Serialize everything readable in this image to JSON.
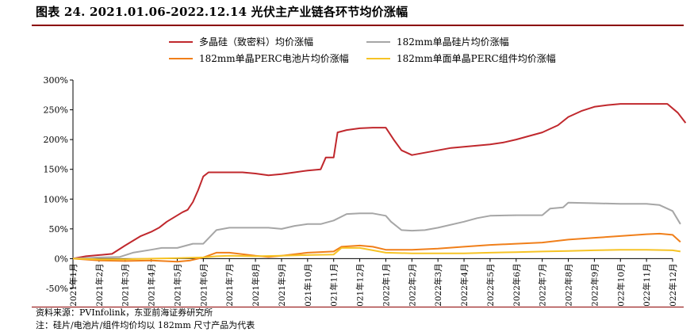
{
  "header": {
    "title": "图表 24. 2021.01.06-2022.12.14 光伏主产业链各环节均价涨幅"
  },
  "footer": {
    "source": "资料来源：PVInfolink，东亚前海证券研究所",
    "note": "注：硅片/电池片/组件均价均以 182mm 尺寸产品为代表"
  },
  "chart_data": {
    "type": "line",
    "title": "",
    "xlabel": "",
    "ylabel": "",
    "ylim": [
      -50,
      300
    ],
    "y_ticks": [
      "300%",
      "250%",
      "200%",
      "150%",
      "100%",
      "50%",
      "0%",
      "-50%"
    ],
    "y_tick_values": [
      300,
      250,
      200,
      150,
      100,
      50,
      0,
      -50
    ],
    "x_tick_labels": [
      "2021年1月",
      "2021年2月",
      "2021年3月",
      "2021年4月",
      "2021年5月",
      "2021年6月",
      "2021年7月",
      "2021年8月",
      "2021年9月",
      "2021年10月",
      "2021年11月",
      "2021年12月",
      "2022年1月",
      "2022年2月",
      "2022年3月",
      "2022年4月",
      "2022年5月",
      "2022年6月",
      "2022年7月",
      "2022年8月",
      "2022年9月",
      "2022年10月",
      "2022年11月",
      "2022年12月"
    ],
    "x_unit": "month index (0 = 2021年1月)",
    "grid": false,
    "legend_position": "top",
    "series": [
      {
        "name": "多晶硅（致密料）均价涨幅",
        "color": "#c0282d",
        "x": [
          0,
          0.5,
          1,
          1.5,
          2,
          2.3,
          2.6,
          3,
          3.3,
          3.6,
          3.9,
          4.2,
          4.4,
          4.6,
          4.8,
          5.0,
          5.2,
          5.4,
          5.6,
          6,
          6.5,
          7,
          7.5,
          8,
          8.5,
          9,
          9.5,
          9.7,
          9.8,
          10.0,
          10.15,
          10.5,
          11,
          11.5,
          12,
          12.3,
          12.6,
          13,
          13.5,
          14,
          14.5,
          15,
          15.5,
          16,
          16.5,
          17,
          17.5,
          18,
          18.3,
          18.6,
          19,
          19.5,
          20,
          20.5,
          21,
          21.5,
          22,
          22.5,
          22.8,
          23.2,
          23.5
        ],
        "values": [
          0,
          4,
          6,
          8,
          22,
          30,
          38,
          45,
          52,
          62,
          70,
          78,
          82,
          95,
          115,
          138,
          145,
          145,
          145,
          145,
          145,
          143,
          140,
          142,
          145,
          148,
          150,
          170,
          170,
          170,
          212,
          216,
          219,
          220,
          220,
          200,
          182,
          174,
          178,
          182,
          186,
          188,
          190,
          192,
          195,
          200,
          206,
          212,
          218,
          224,
          238,
          248,
          255,
          258,
          260,
          260,
          260,
          260,
          260,
          245,
          228
        ]
      },
      {
        "name": "182mm单晶硅片均价涨幅",
        "color": "#a6a6a6",
        "x": [
          0,
          1,
          1.8,
          2.3,
          3,
          3.4,
          4,
          4.6,
          5,
          5.5,
          6,
          7,
          7.5,
          8,
          8.5,
          9,
          9.5,
          10,
          10.5,
          11,
          11.5,
          12,
          12.2,
          12.6,
          13,
          13.5,
          14,
          15,
          15.5,
          16,
          17,
          18,
          18.3,
          18.8,
          19,
          20,
          21,
          22,
          22.5,
          23.0,
          23.3
        ],
        "values": [
          0,
          2,
          3,
          10,
          15,
          18,
          18,
          25,
          25,
          48,
          52,
          52,
          52,
          50,
          55,
          58,
          58,
          64,
          75,
          76,
          76,
          72,
          62,
          48,
          47,
          48,
          52,
          62,
          68,
          72,
          73,
          73,
          84,
          86,
          94,
          93,
          92,
          92,
          90,
          80,
          58
        ]
      },
      {
        "name": "182mm单晶PERC电池片均价涨幅",
        "color": "#f07f1a",
        "x": [
          0,
          1,
          2,
          3,
          4,
          4.5,
          5,
          5.5,
          6,
          7,
          7.5,
          8,
          9,
          10,
          10.3,
          11,
          11.5,
          12,
          13,
          14,
          15,
          16,
          17,
          18,
          19,
          20,
          21,
          22,
          22.5,
          23.0,
          23.3
        ],
        "values": [
          0,
          -3,
          -4,
          -3,
          -5,
          -3,
          2,
          10,
          10,
          5,
          3,
          5,
          10,
          12,
          20,
          22,
          20,
          15,
          15,
          17,
          20,
          23,
          25,
          27,
          32,
          35,
          38,
          41,
          42,
          40,
          28
        ]
      },
      {
        "name": "182mm单面单晶PERC组件均价涨幅",
        "color": "#f6c325",
        "x": [
          0,
          1,
          2,
          3,
          4,
          5,
          5.5,
          6,
          7,
          8,
          9,
          10,
          10.3,
          11,
          12,
          13,
          14,
          15,
          16,
          17,
          18,
          19,
          20,
          21,
          22,
          23,
          23.3
        ],
        "values": [
          0,
          -1,
          -1,
          0,
          1,
          2,
          4,
          5,
          4,
          5,
          6,
          7,
          18,
          18,
          10,
          9,
          9,
          9,
          10,
          11,
          12,
          13,
          14,
          15,
          15,
          14,
          12
        ]
      }
    ]
  }
}
